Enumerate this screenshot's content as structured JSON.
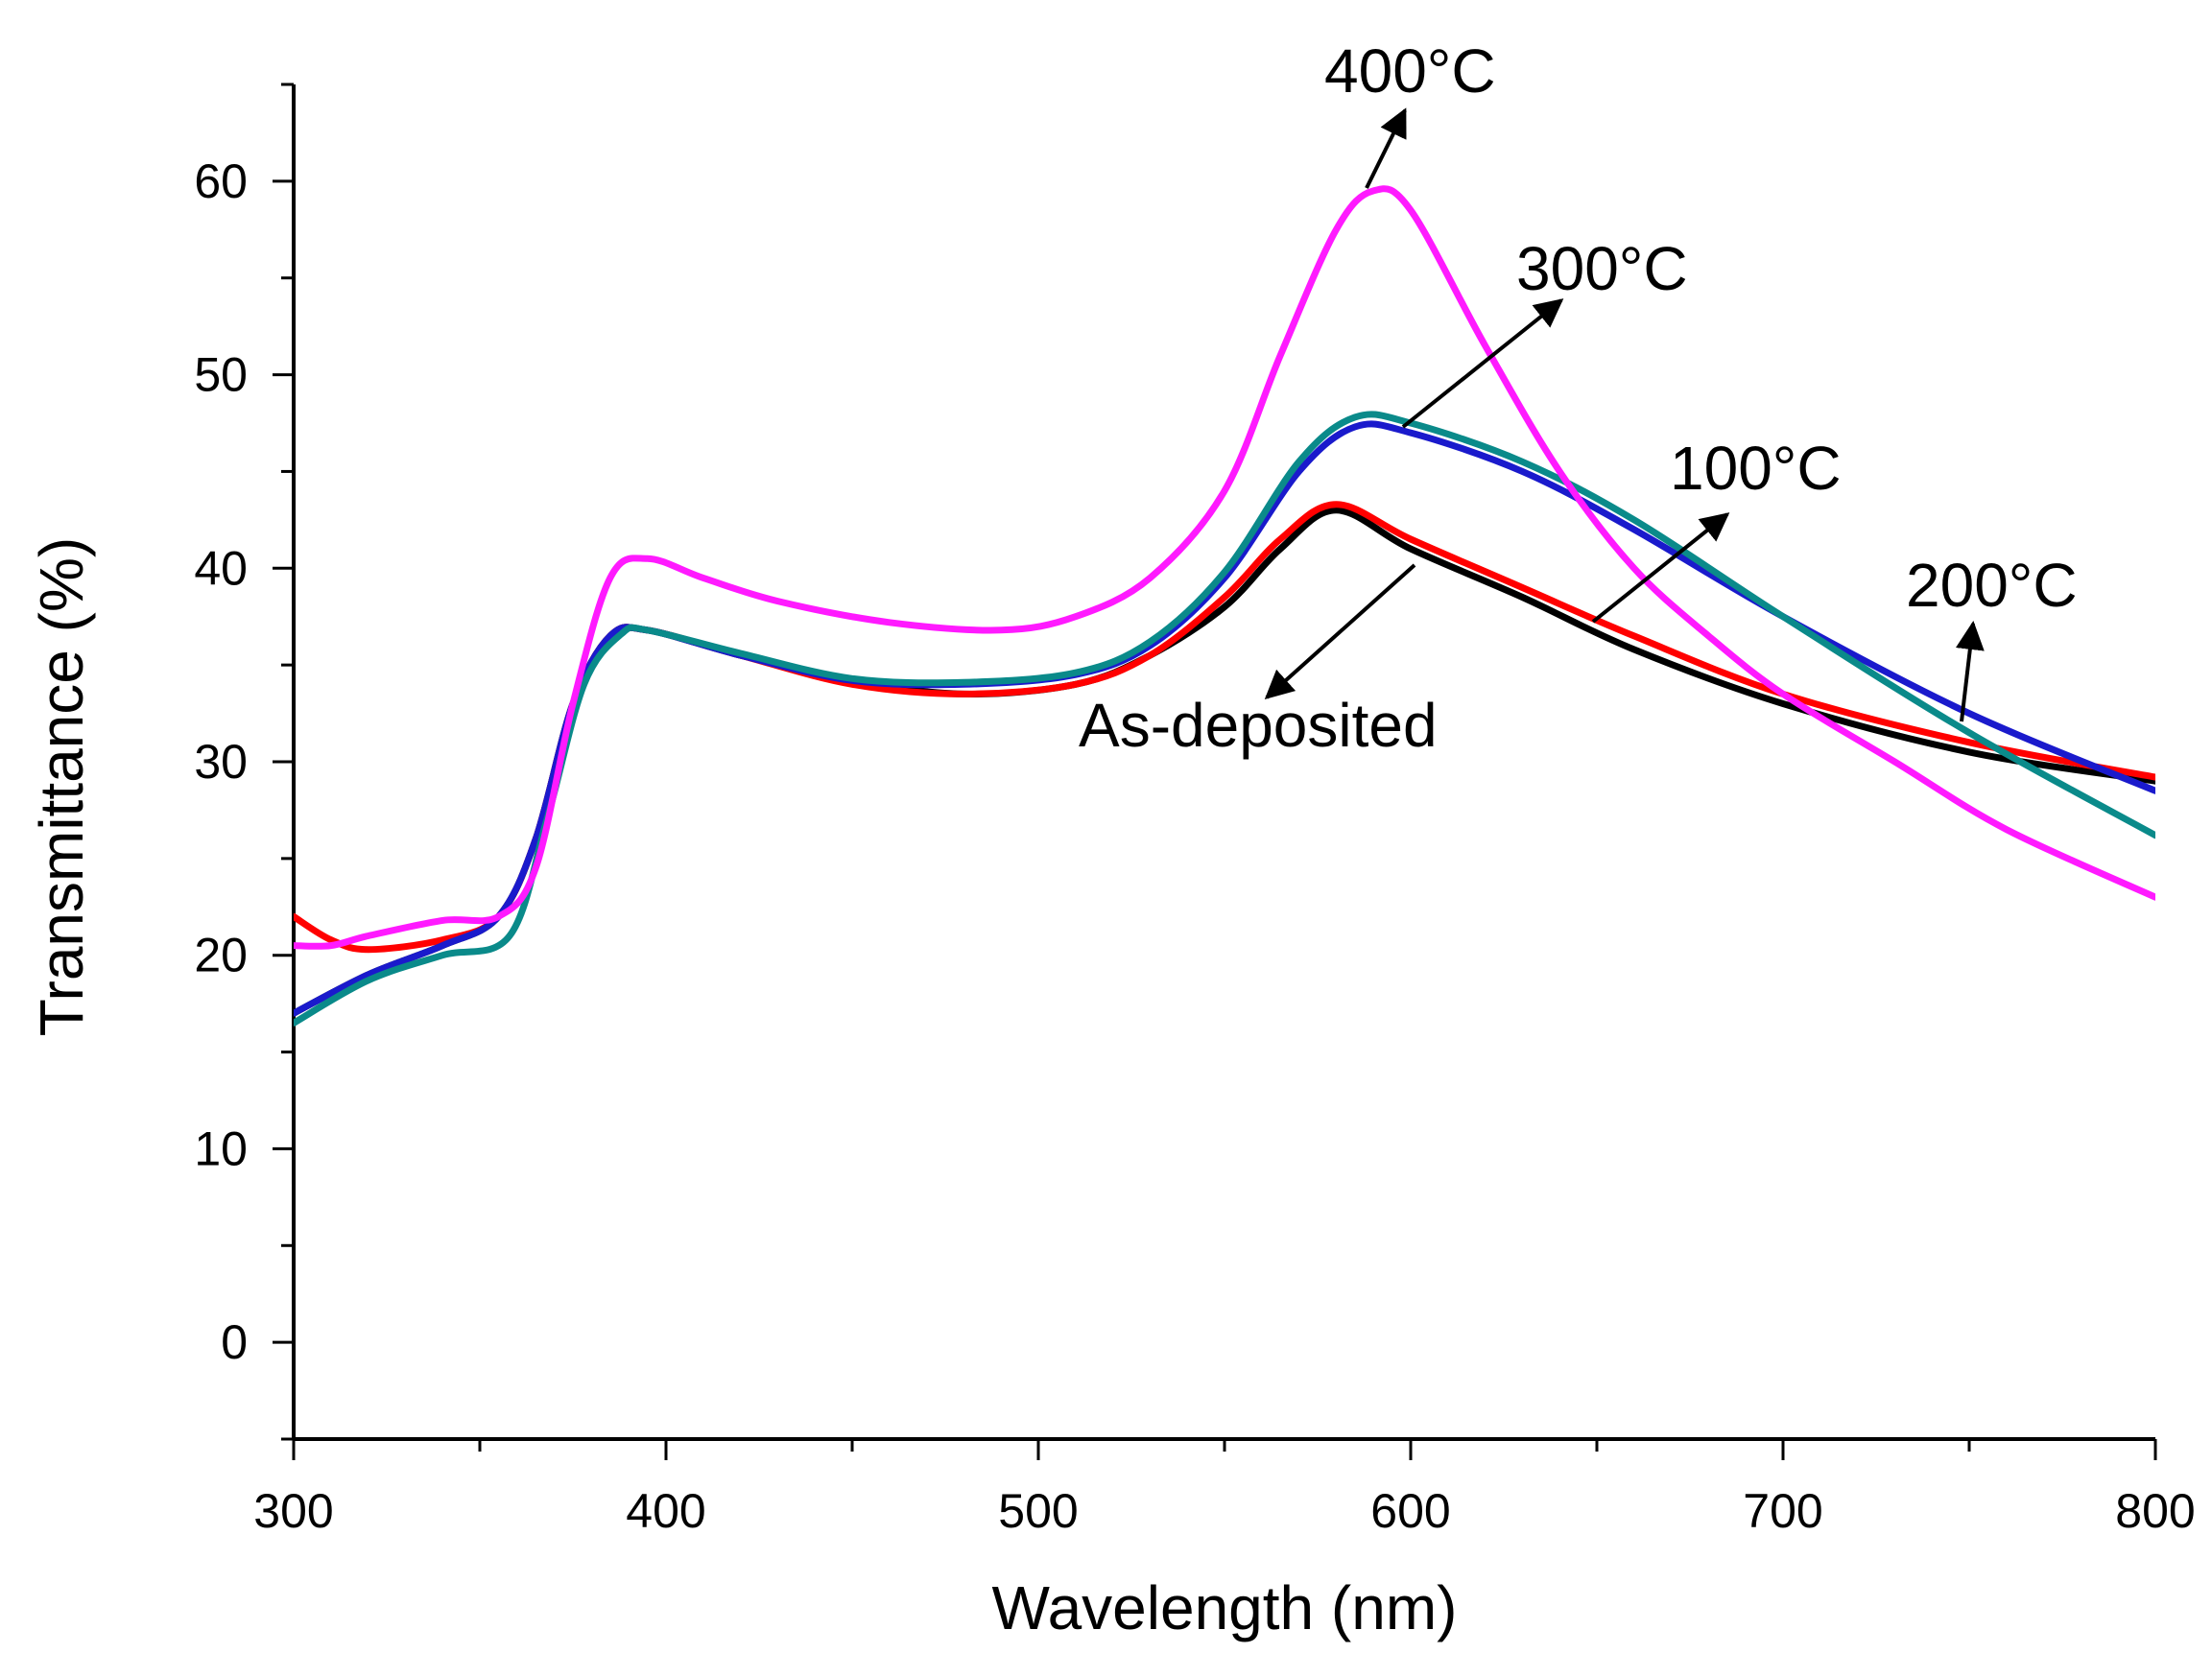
{
  "chart_data": {
    "type": "line",
    "title": "",
    "xlabel": "Wavelength (nm)",
    "ylabel": "Transmittance (%)",
    "xlim": [
      300,
      800
    ],
    "ylim": [
      -5,
      65
    ],
    "xticks": [
      "300",
      "400",
      "500",
      "600",
      "700",
      "800"
    ],
    "yticks": [
      "0",
      "10",
      "20",
      "30",
      "40",
      "50",
      "60"
    ],
    "grid": false,
    "legend": "none",
    "series": [
      {
        "name": "As-deposited",
        "color": "#000000",
        "x": [
          300,
          320,
          340,
          355,
          365,
          375,
          385,
          395,
          420,
          450,
          480,
          510,
          530,
          550,
          565,
          580,
          600,
          630,
          660,
          700,
          750,
          800
        ],
        "y": [
          17,
          19,
          20.5,
          22,
          26,
          33,
          36.5,
          36.8,
          35.5,
          34.2,
          33.5,
          34,
          35.5,
          38,
          41,
          43,
          41,
          38.5,
          35.8,
          33,
          30.5,
          29
        ]
      },
      {
        "name": "100°C",
        "color": "#ff0000",
        "x": [
          300,
          310,
          320,
          340,
          355,
          365,
          375,
          385,
          395,
          420,
          450,
          480,
          510,
          530,
          550,
          565,
          580,
          600,
          630,
          660,
          700,
          750,
          800
        ],
        "y": [
          22,
          20.8,
          20.3,
          20.8,
          22,
          26,
          33,
          36.5,
          36.8,
          35.5,
          34,
          33.5,
          34,
          35.5,
          38.5,
          41.5,
          43.3,
          41.5,
          39,
          36.5,
          33.5,
          31,
          29.2
        ]
      },
      {
        "name": "200°C",
        "color": "#1a1acc",
        "x": [
          300,
          320,
          340,
          355,
          365,
          375,
          385,
          395,
          420,
          450,
          480,
          510,
          530,
          550,
          570,
          585,
          600,
          630,
          660,
          700,
          750,
          800
        ],
        "y": [
          17,
          19,
          20.5,
          22,
          26,
          33,
          36.5,
          36.8,
          35.5,
          34.2,
          34,
          34.5,
          36,
          39.5,
          45,
          47.3,
          47,
          45,
          42,
          37.5,
          32.5,
          28.5
        ]
      },
      {
        "name": "300°C",
        "color": "#0a8a8a",
        "x": [
          300,
          320,
          340,
          358,
          368,
          378,
          388,
          395,
          420,
          450,
          480,
          510,
          530,
          550,
          570,
          585,
          600,
          630,
          660,
          700,
          750,
          800
        ],
        "y": [
          16.5,
          18.7,
          20,
          21,
          27,
          34,
          36.6,
          36.8,
          35.6,
          34.3,
          34.1,
          34.6,
          36.2,
          39.8,
          45.5,
          47.8,
          47.5,
          45.5,
          42.5,
          37.5,
          31.5,
          26.2
        ]
      },
      {
        "name": "400°C",
        "color": "#ff1aff",
        "x": [
          300,
          310,
          320,
          340,
          355,
          365,
          375,
          385,
          395,
          410,
          430,
          460,
          490,
          510,
          530,
          550,
          565,
          580,
          590,
          600,
          620,
          640,
          660,
          680,
          700,
          730,
          760,
          800
        ],
        "y": [
          20.5,
          20.5,
          21,
          21.8,
          22,
          24.5,
          33,
          39.5,
          40.5,
          39.5,
          38.3,
          37.2,
          36.8,
          37.5,
          39.5,
          44,
          51,
          57.5,
          59.5,
          58.5,
          51.5,
          45,
          40,
          36.5,
          33.5,
          30,
          26.5,
          23
        ]
      }
    ],
    "annotations": [
      {
        "text": "400°C",
        "series": "400°C"
      },
      {
        "text": "300°C",
        "series": "300°C"
      },
      {
        "text": "100°C",
        "series": "100°C"
      },
      {
        "text": "200°C",
        "series": "200°C"
      },
      {
        "text": "As-deposited",
        "series": "As-deposited"
      }
    ]
  }
}
